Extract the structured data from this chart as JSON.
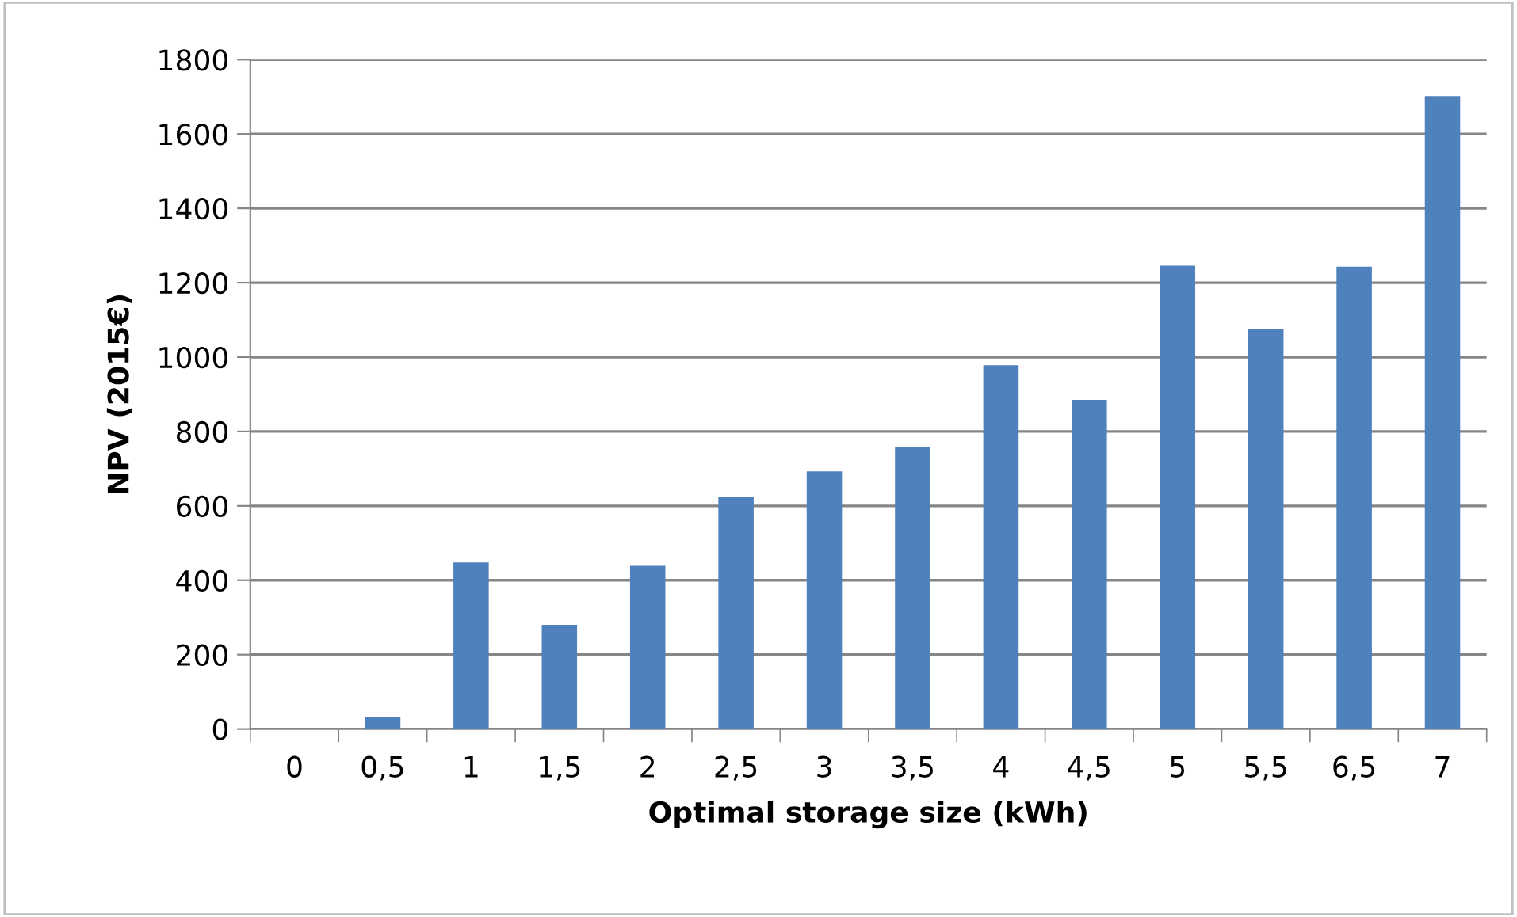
{
  "chart_data": {
    "type": "bar",
    "xlabel": "Optimal storage size (kWh)",
    "ylabel": "NPV (2015€)",
    "categories": [
      "0",
      "0,5",
      "1",
      "1,5",
      "2",
      "2,5",
      "3",
      "3,5",
      "4",
      "4,5",
      "5",
      "5,5",
      "6,5",
      "7"
    ],
    "values": [
      0,
      33,
      448,
      280,
      439,
      624,
      693,
      757,
      978,
      885,
      1246,
      1076,
      1243,
      1702
    ],
    "color": "#4f81bd",
    "ylim": [
      0,
      1800
    ],
    "yticks": [
      0,
      200,
      400,
      600,
      800,
      1000,
      1200,
      1400,
      1600,
      1800
    ],
    "grid": "y",
    "legend": false
  }
}
